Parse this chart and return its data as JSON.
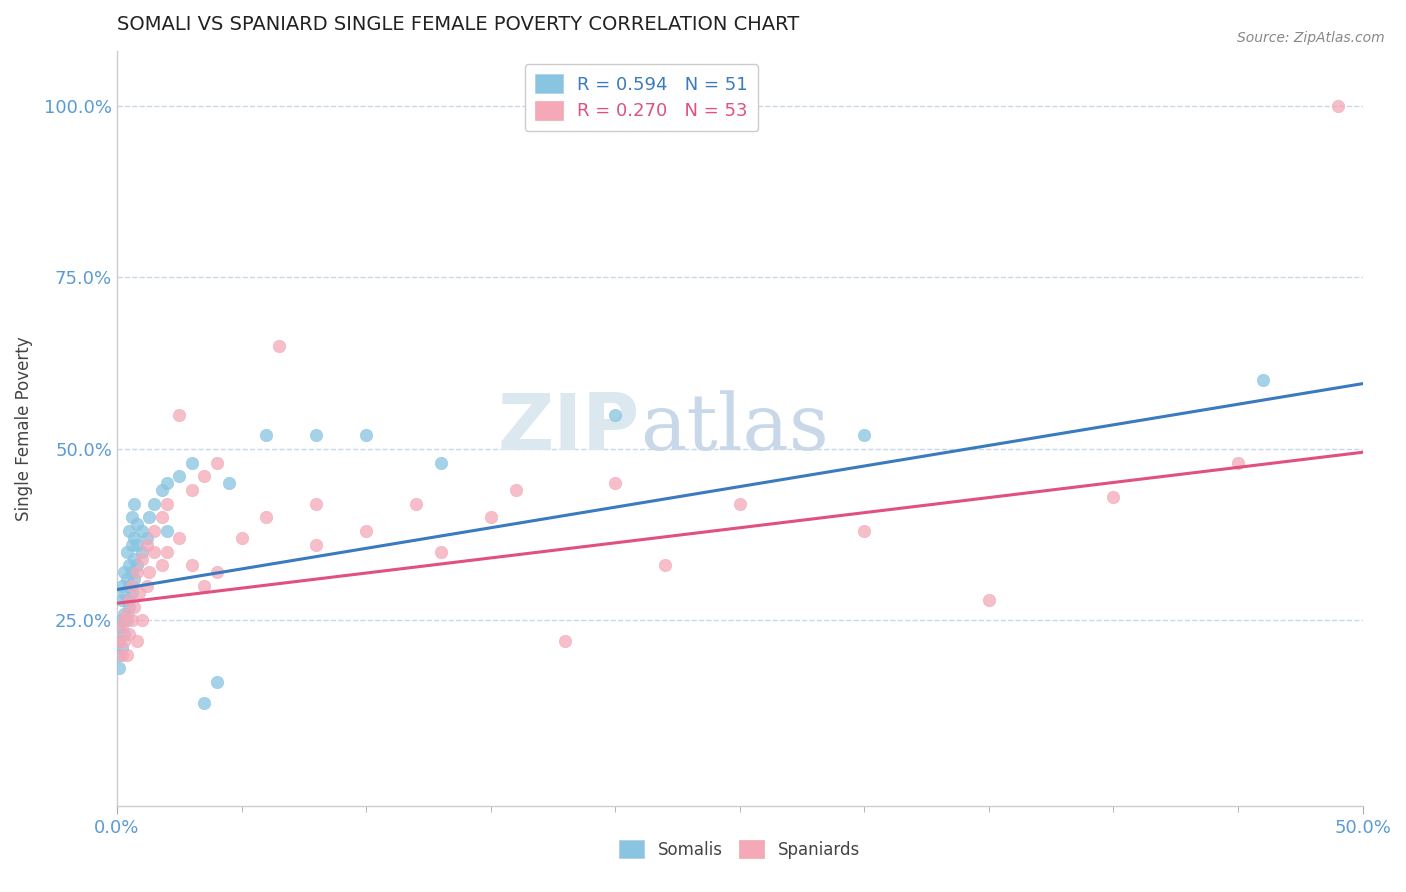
{
  "title": "SOMALI VS SPANIARD SINGLE FEMALE POVERTY CORRELATION CHART",
  "source": "Source: ZipAtlas.com",
  "xlim": [
    0.0,
    0.5
  ],
  "ylim": [
    -0.02,
    1.08
  ],
  "somali_color": "#89c4e1",
  "spaniard_color": "#f4a8b8",
  "somali_R": 0.594,
  "somali_N": 51,
  "spaniard_R": 0.27,
  "spaniard_N": 53,
  "somali_line_color": "#3a7bbf",
  "spaniard_line_color": "#e05080",
  "watermark_color": "#dce8f0",
  "tick_color": "#5b9bd5",
  "grid_color": "#c8d8e8",
  "background": "#ffffff",
  "somali_points": [
    [
      0.001,
      0.2
    ],
    [
      0.001,
      0.22
    ],
    [
      0.001,
      0.24
    ],
    [
      0.001,
      0.18
    ],
    [
      0.002,
      0.21
    ],
    [
      0.002,
      0.25
    ],
    [
      0.002,
      0.28
    ],
    [
      0.002,
      0.3
    ],
    [
      0.003,
      0.23
    ],
    [
      0.003,
      0.26
    ],
    [
      0.003,
      0.29
    ],
    [
      0.003,
      0.32
    ],
    [
      0.004,
      0.25
    ],
    [
      0.004,
      0.28
    ],
    [
      0.004,
      0.31
    ],
    [
      0.004,
      0.35
    ],
    [
      0.005,
      0.27
    ],
    [
      0.005,
      0.3
    ],
    [
      0.005,
      0.33
    ],
    [
      0.005,
      0.38
    ],
    [
      0.006,
      0.29
    ],
    [
      0.006,
      0.32
    ],
    [
      0.006,
      0.36
    ],
    [
      0.006,
      0.4
    ],
    [
      0.007,
      0.31
    ],
    [
      0.007,
      0.34
    ],
    [
      0.007,
      0.37
    ],
    [
      0.007,
      0.42
    ],
    [
      0.008,
      0.33
    ],
    [
      0.008,
      0.36
    ],
    [
      0.008,
      0.39
    ],
    [
      0.01,
      0.35
    ],
    [
      0.01,
      0.38
    ],
    [
      0.012,
      0.37
    ],
    [
      0.013,
      0.4
    ],
    [
      0.015,
      0.42
    ],
    [
      0.018,
      0.44
    ],
    [
      0.02,
      0.38
    ],
    [
      0.02,
      0.45
    ],
    [
      0.025,
      0.46
    ],
    [
      0.03,
      0.48
    ],
    [
      0.035,
      0.13
    ],
    [
      0.04,
      0.16
    ],
    [
      0.045,
      0.45
    ],
    [
      0.06,
      0.52
    ],
    [
      0.08,
      0.52
    ],
    [
      0.1,
      0.52
    ],
    [
      0.13,
      0.48
    ],
    [
      0.2,
      0.55
    ],
    [
      0.3,
      0.52
    ],
    [
      0.46,
      0.6
    ]
  ],
  "spaniard_points": [
    [
      0.001,
      0.22
    ],
    [
      0.002,
      0.2
    ],
    [
      0.002,
      0.24
    ],
    [
      0.003,
      0.22
    ],
    [
      0.003,
      0.25
    ],
    [
      0.004,
      0.2
    ],
    [
      0.004,
      0.26
    ],
    [
      0.005,
      0.23
    ],
    [
      0.005,
      0.28
    ],
    [
      0.006,
      0.25
    ],
    [
      0.006,
      0.3
    ],
    [
      0.007,
      0.27
    ],
    [
      0.008,
      0.22
    ],
    [
      0.008,
      0.32
    ],
    [
      0.009,
      0.29
    ],
    [
      0.01,
      0.25
    ],
    [
      0.01,
      0.34
    ],
    [
      0.012,
      0.3
    ],
    [
      0.012,
      0.36
    ],
    [
      0.013,
      0.32
    ],
    [
      0.015,
      0.35
    ],
    [
      0.015,
      0.38
    ],
    [
      0.018,
      0.33
    ],
    [
      0.018,
      0.4
    ],
    [
      0.02,
      0.35
    ],
    [
      0.02,
      0.42
    ],
    [
      0.025,
      0.55
    ],
    [
      0.025,
      0.37
    ],
    [
      0.03,
      0.33
    ],
    [
      0.03,
      0.44
    ],
    [
      0.035,
      0.3
    ],
    [
      0.035,
      0.46
    ],
    [
      0.04,
      0.32
    ],
    [
      0.04,
      0.48
    ],
    [
      0.05,
      0.37
    ],
    [
      0.06,
      0.4
    ],
    [
      0.065,
      0.65
    ],
    [
      0.08,
      0.36
    ],
    [
      0.08,
      0.42
    ],
    [
      0.1,
      0.38
    ],
    [
      0.12,
      0.42
    ],
    [
      0.13,
      0.35
    ],
    [
      0.15,
      0.4
    ],
    [
      0.16,
      0.44
    ],
    [
      0.18,
      0.22
    ],
    [
      0.2,
      0.45
    ],
    [
      0.22,
      0.33
    ],
    [
      0.25,
      0.42
    ],
    [
      0.3,
      0.38
    ],
    [
      0.35,
      0.28
    ],
    [
      0.4,
      0.43
    ],
    [
      0.45,
      0.48
    ],
    [
      0.49,
      1.0
    ]
  ]
}
